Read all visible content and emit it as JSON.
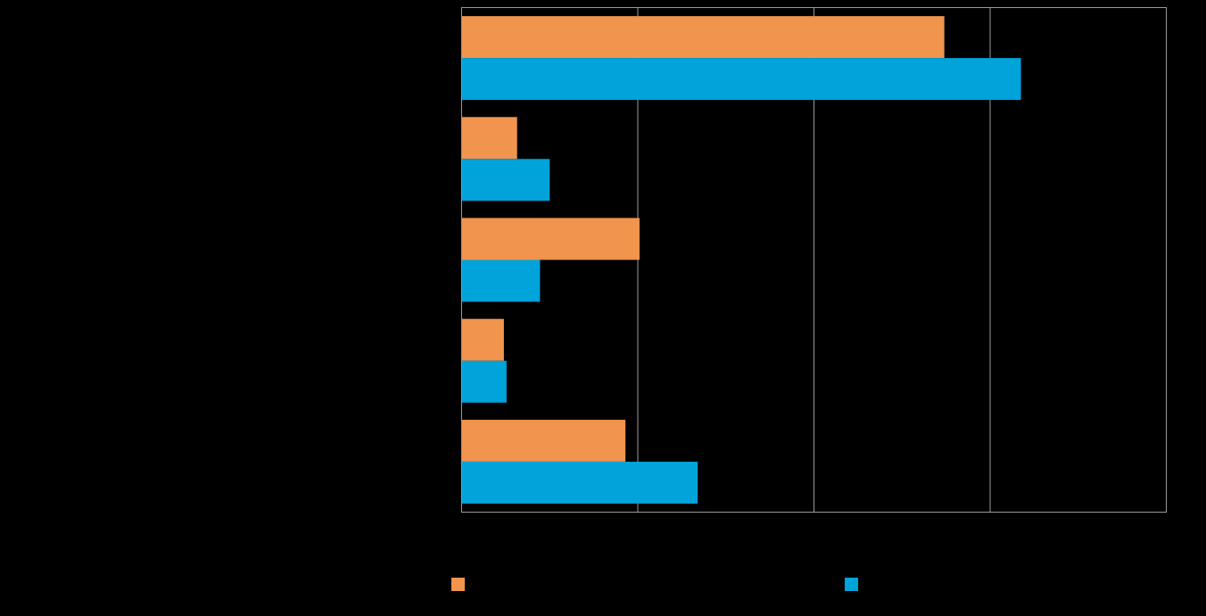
{
  "chart_data": {
    "type": "bar",
    "orientation": "horizontal",
    "title": "",
    "xlabel": "",
    "ylabel": "",
    "categories": [
      "",
      "",
      "",
      "",
      ""
    ],
    "series": [
      {
        "name": "",
        "color": "#F0944E",
        "values": [
          54.8,
          6.3,
          20.2,
          4.8,
          18.6
        ]
      },
      {
        "name": "",
        "color": "#00A3DA",
        "values": [
          63.5,
          10.0,
          8.9,
          5.1,
          26.8
        ]
      }
    ],
    "xlim": [
      0,
      80
    ],
    "gridlines_x": [
      0,
      20,
      40,
      60,
      80
    ],
    "grid": true,
    "grid_color": "#9a9a9a",
    "background": "#000000",
    "legend_position": "bottom"
  }
}
